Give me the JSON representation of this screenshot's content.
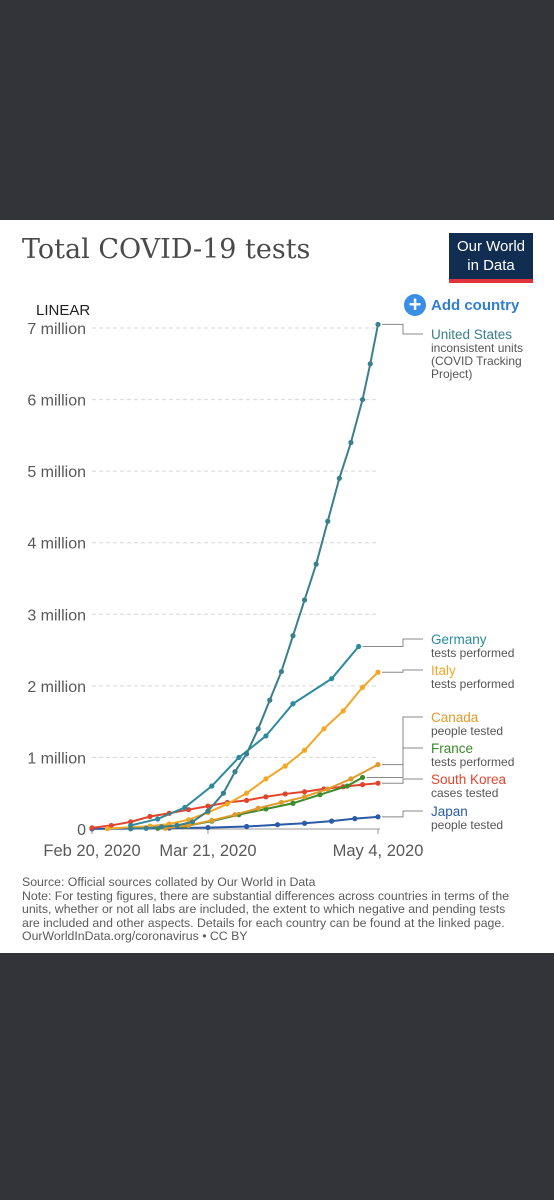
{
  "header": {
    "title": "Total COVID-19 tests",
    "logo_line1": "Our World",
    "logo_line2": "in Data",
    "logo_bg": "#112e52",
    "logo_bar": "#e1333b",
    "add_country": "Add country",
    "add_icon": "+"
  },
  "chart_data": {
    "type": "line",
    "title": "Total COVID-19 tests",
    "scale_label": "LINEAR",
    "y_unit": "tests",
    "ylim": [
      0,
      7000000
    ],
    "y_ticks": [
      0,
      1000000,
      2000000,
      3000000,
      4000000,
      5000000,
      6000000,
      7000000
    ],
    "y_tick_labels": [
      "0",
      "1 million",
      "2 million",
      "3 million",
      "4 million",
      "5 million",
      "6 million",
      "7 million"
    ],
    "x_ticks": [
      "2020-02-20",
      "2020-03-21",
      "2020-05-04"
    ],
    "x_tick_labels": [
      "Feb 20, 2020",
      "Mar 21, 2020",
      "May 4, 2020"
    ],
    "grid": "horizontal dashed",
    "legend": "right, labels at line ends",
    "series": [
      {
        "name": "United States",
        "sublabel": [
          "inconsistent units",
          "(COVID Tracking",
          "Project)"
        ],
        "color": "#3a7f8c",
        "points": [
          [
            "2020-03-01",
            5000
          ],
          [
            "2020-03-05",
            10000
          ],
          [
            "2020-03-09",
            30000
          ],
          [
            "2020-03-13",
            50000
          ],
          [
            "2020-03-17",
            100000
          ],
          [
            "2020-03-21",
            250000
          ],
          [
            "2020-03-25",
            500000
          ],
          [
            "2020-03-28",
            800000
          ],
          [
            "2020-03-31",
            1050000
          ],
          [
            "2020-04-03",
            1400000
          ],
          [
            "2020-04-06",
            1800000
          ],
          [
            "2020-04-09",
            2200000
          ],
          [
            "2020-04-12",
            2700000
          ],
          [
            "2020-04-15",
            3200000
          ],
          [
            "2020-04-18",
            3700000
          ],
          [
            "2020-04-21",
            4300000
          ],
          [
            "2020-04-24",
            4900000
          ],
          [
            "2020-04-27",
            5400000
          ],
          [
            "2020-04-30",
            6000000
          ],
          [
            "2020-05-02",
            6500000
          ],
          [
            "2020-05-04",
            7050000
          ]
        ]
      },
      {
        "name": "Germany",
        "sublabel": [
          "tests performed"
        ],
        "color": "#2b8a9e",
        "points": [
          [
            "2020-03-01",
            50000
          ],
          [
            "2020-03-08",
            140000
          ],
          [
            "2020-03-15",
            300000
          ],
          [
            "2020-03-22",
            600000
          ],
          [
            "2020-03-29",
            1000000
          ],
          [
            "2020-04-05",
            1300000
          ],
          [
            "2020-04-12",
            1750000
          ],
          [
            "2020-04-22",
            2100000
          ],
          [
            "2020-04-29",
            2550000
          ]
        ]
      },
      {
        "name": "Italy",
        "sublabel": [
          "tests performed"
        ],
        "color": "#f2a727",
        "points": [
          [
            "2020-02-24",
            5000
          ],
          [
            "2020-03-01",
            25000
          ],
          [
            "2020-03-06",
            40000
          ],
          [
            "2020-03-11",
            70000
          ],
          [
            "2020-03-16",
            130000
          ],
          [
            "2020-03-21",
            230000
          ],
          [
            "2020-03-26",
            350000
          ],
          [
            "2020-03-31",
            500000
          ],
          [
            "2020-04-05",
            700000
          ],
          [
            "2020-04-10",
            880000
          ],
          [
            "2020-04-15",
            1100000
          ],
          [
            "2020-04-20",
            1400000
          ],
          [
            "2020-04-25",
            1650000
          ],
          [
            "2020-04-30",
            1980000
          ],
          [
            "2020-05-04",
            2190000
          ]
        ]
      },
      {
        "name": "Canada",
        "sublabel": [
          "people tested"
        ],
        "color": "#e09a2c",
        "points": [
          [
            "2020-03-10",
            10000
          ],
          [
            "2020-03-16",
            50000
          ],
          [
            "2020-03-22",
            120000
          ],
          [
            "2020-03-28",
            200000
          ],
          [
            "2020-04-03",
            290000
          ],
          [
            "2020-04-09",
            370000
          ],
          [
            "2020-04-15",
            450000
          ],
          [
            "2020-04-21",
            560000
          ],
          [
            "2020-04-27",
            700000
          ],
          [
            "2020-05-04",
            900000
          ]
        ]
      },
      {
        "name": "France",
        "sublabel": [
          "tests performed"
        ],
        "color": "#3b8a2c",
        "points": [
          [
            "2020-03-08",
            10000
          ],
          [
            "2020-03-15",
            40000
          ],
          [
            "2020-03-22",
            110000
          ],
          [
            "2020-03-29",
            200000
          ],
          [
            "2020-04-05",
            280000
          ],
          [
            "2020-04-12",
            360000
          ],
          [
            "2020-04-19",
            480000
          ],
          [
            "2020-04-26",
            600000
          ],
          [
            "2020-04-30",
            720000
          ]
        ]
      },
      {
        "name": "South Korea",
        "sublabel": [
          "cases tested"
        ],
        "color": "#e0442c",
        "points": [
          [
            "2020-02-20",
            16000
          ],
          [
            "2020-02-25",
            50000
          ],
          [
            "2020-03-01",
            100000
          ],
          [
            "2020-03-06",
            175000
          ],
          [
            "2020-03-11",
            220000
          ],
          [
            "2020-03-16",
            270000
          ],
          [
            "2020-03-21",
            320000
          ],
          [
            "2020-03-26",
            370000
          ],
          [
            "2020-03-31",
            400000
          ],
          [
            "2020-04-05",
            450000
          ],
          [
            "2020-04-10",
            490000
          ],
          [
            "2020-04-15",
            520000
          ],
          [
            "2020-04-20",
            560000
          ],
          [
            "2020-04-25",
            590000
          ],
          [
            "2020-04-30",
            620000
          ],
          [
            "2020-05-04",
            640000
          ]
        ]
      },
      {
        "name": "Japan",
        "sublabel": [
          "people tested"
        ],
        "color": "#2b5aa8",
        "points": [
          [
            "2020-02-20",
            1000
          ],
          [
            "2020-03-01",
            5000
          ],
          [
            "2020-03-11",
            13000
          ],
          [
            "2020-03-21",
            20000
          ],
          [
            "2020-03-31",
            35000
          ],
          [
            "2020-04-08",
            60000
          ],
          [
            "2020-04-15",
            80000
          ],
          [
            "2020-04-22",
            110000
          ],
          [
            "2020-04-28",
            145000
          ],
          [
            "2020-05-04",
            170000
          ]
        ]
      }
    ]
  },
  "footer": {
    "source": "Source: Official sources collated by Our World in Data",
    "note": "Note: For testing figures, there are substantial differences across countries in terms of the units, whether or not all labs are included, the extent to which negative and pending tests are included and other aspects. Details for each country can be found at the linked page.",
    "credit": "OurWorldInData.org/coronavirus • CC BY"
  }
}
